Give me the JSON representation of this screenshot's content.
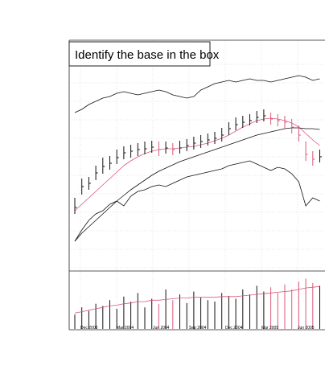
{
  "chart_data": {
    "type": "ohlc",
    "title": "Identify the base in the box",
    "x_labels": [
      "Dec 2003",
      "Mar 2004",
      "Jun 2004",
      "Sep 2004",
      "Dec 2004",
      "Mar 2005",
      "Jun 2005"
    ],
    "ylim": [
      0,
      280
    ],
    "high": [
      90,
      114,
      116,
      130,
      140,
      142,
      150,
      154,
      156,
      158,
      160,
      161,
      160,
      160,
      158,
      161,
      163,
      166,
      168,
      170,
      172,
      177,
      184,
      190,
      192,
      194,
      198,
      200,
      196,
      194,
      192,
      188,
      180,
      160,
      148,
      150
    ],
    "low": [
      70,
      94,
      100,
      112,
      120,
      125,
      132,
      138,
      140,
      142,
      144,
      146,
      142,
      145,
      143,
      145,
      148,
      150,
      152,
      155,
      157,
      160,
      168,
      174,
      177,
      180,
      183,
      185,
      181,
      179,
      176,
      170,
      160,
      136,
      130,
      134
    ],
    "close": [
      78,
      104,
      108,
      121,
      129,
      133,
      140,
      146,
      148,
      150,
      151,
      153,
      150,
      152,
      150,
      152,
      155,
      158,
      160,
      162,
      164,
      168,
      176,
      181,
      184,
      186,
      190,
      192,
      188,
      186,
      184,
      178,
      168,
      144,
      138,
      141
    ],
    "up_color": "#111111",
    "down_color": "#d9587a",
    "lines": [
      {
        "color": "#d9587a",
        "values": [
          74,
          82,
          90,
          98,
          106,
          114,
          122,
          130,
          136,
          141,
          145,
          148,
          150,
          151,
          151,
          152,
          153,
          154,
          156,
          158,
          161,
          164,
          168,
          173,
          178,
          182,
          186,
          188,
          189,
          188,
          186,
          183,
          178,
          170,
          162,
          155
        ]
      },
      {
        "color": "#111111",
        "values": [
          36,
          46,
          54,
          62,
          70,
          78,
          86,
          93,
          100,
          106,
          112,
          118,
          123,
          127,
          131,
          135,
          138,
          141,
          144,
          147,
          150,
          153,
          156,
          159,
          162,
          165,
          168,
          170,
          172,
          174,
          176,
          177,
          177,
          176,
          176,
          175
        ]
      },
      {
        "color": "#111111",
        "values": [
          196,
          200,
          206,
          210,
          214,
          216,
          220,
          222,
          220,
          218,
          220,
          222,
          224,
          222,
          218,
          216,
          214,
          216,
          224,
          228,
          232,
          234,
          236,
          234,
          236,
          238,
          236,
          236,
          234,
          236,
          238,
          240,
          242,
          240,
          236,
          238
        ]
      },
      {
        "color": "#111111",
        "values": [
          36,
          50,
          62,
          70,
          74,
          82,
          86,
          80,
          92,
          98,
          100,
          104,
          106,
          104,
          108,
          112,
          116,
          118,
          120,
          122,
          124,
          126,
          130,
          132,
          134,
          136,
          132,
          128,
          124,
          128,
          126,
          120,
          110,
          80,
          90,
          86
        ]
      }
    ],
    "volume": [
      20,
      30,
      25,
      35,
      32,
      40,
      28,
      45,
      38,
      50,
      30,
      42,
      35,
      55,
      40,
      48,
      36,
      52,
      44,
      40,
      38,
      50,
      46,
      42,
      55,
      48,
      60,
      52,
      58,
      50,
      62,
      55,
      66,
      70,
      64,
      60
    ],
    "volume_ma": {
      "color": "#d9587a",
      "values": [
        22,
        24,
        26,
        28,
        30,
        32,
        33,
        35,
        36,
        38,
        38,
        40,
        40,
        41,
        42,
        43,
        43,
        44,
        44,
        44,
        44,
        45,
        45,
        45,
        46,
        47,
        48,
        49,
        50,
        51,
        52,
        53,
        55,
        57,
        58,
        59
      ]
    },
    "volume_ylim": [
      0,
      75
    ],
    "grid": true
  }
}
